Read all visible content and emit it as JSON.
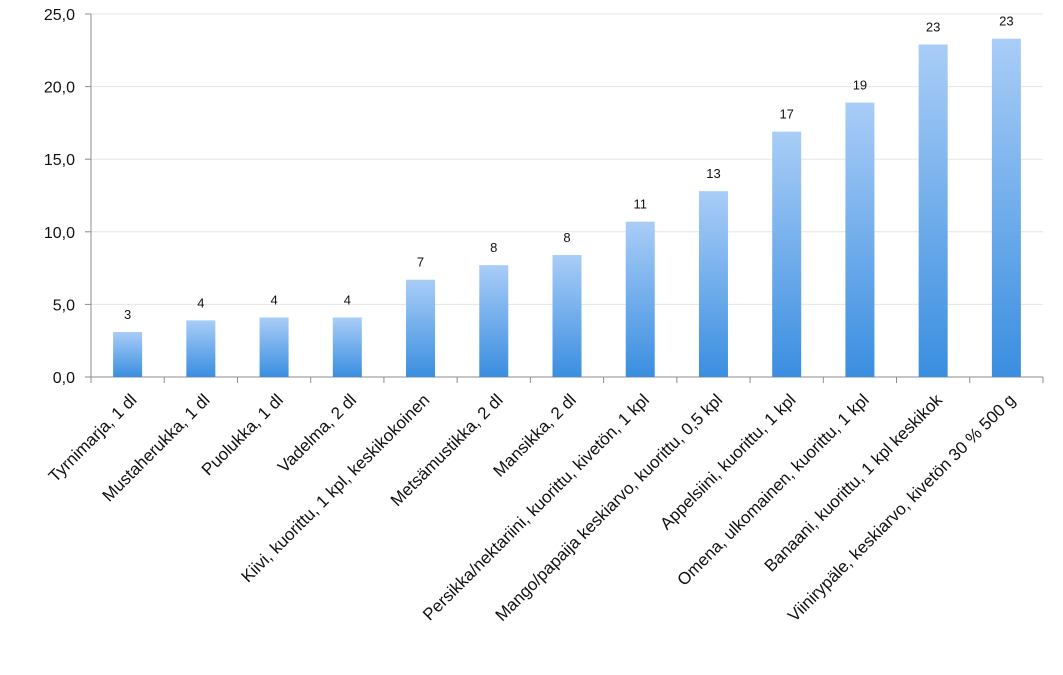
{
  "chart_data": {
    "type": "bar",
    "categories": [
      "Tyrnimarja, 1 dl",
      "Mustaherukka, 1 dl",
      "Puolukka, 1 dl",
      "Vadelma, 2 dl",
      "Kiivi, kuorittu, 1 kpl, keskikokoinen",
      "Metsämustikka, 2 dl",
      "Mansikka, 2 dl",
      "Persikka/nektariini, kuorittu, kivetön, 1 kpl",
      "Mango/papaija keskiarvo, kuorittu, 0,5 kpl",
      "Appelsiini, kuorittu, 1 kpl",
      "Omena, ulkomainen, kuorittu, 1 kpl",
      "Banaani, kuorittu, 1 kpl keskikok",
      "Viinirypäle, keskiarvo, kivetön  30 % 500 g"
    ],
    "values": [
      3.1,
      3.9,
      4.1,
      4.1,
      6.7,
      7.7,
      8.4,
      10.7,
      12.8,
      16.9,
      18.9,
      22.9,
      23.3
    ],
    "data_labels": [
      "3",
      "4",
      "4",
      "4",
      "7",
      "8",
      "8",
      "11",
      "13",
      "17",
      "19",
      "23",
      "23"
    ],
    "ylim": [
      0,
      25
    ],
    "yticks": [
      "0,0",
      "5,0",
      "10,0",
      "15,0",
      "20,0",
      "25,0"
    ],
    "ytick_values": [
      0,
      5,
      10,
      15,
      20,
      25
    ],
    "grid": true,
    "legend": "none",
    "colors": {
      "bar_top": "#a9cdf7",
      "bar_bottom": "#3a8ee0"
    }
  }
}
